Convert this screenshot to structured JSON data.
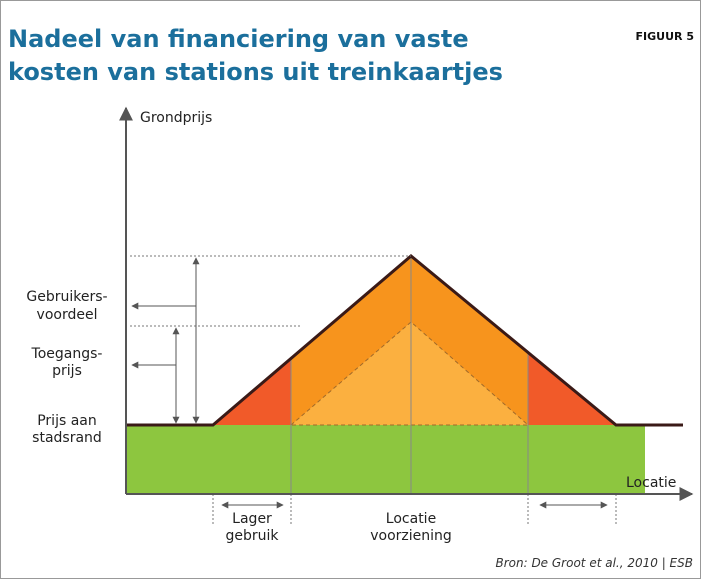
{
  "header": {
    "title_lines": [
      "Nadeel van financiering van  vaste",
      "kosten van stations uit treinkaartjes"
    ],
    "figure_label": "FIGUUR 5"
  },
  "axes": {
    "y_label": "Grondprijs",
    "x_label": "Locatie"
  },
  "left_labels": {
    "user_benefit": [
      "Gebruikers-",
      "voordeel"
    ],
    "access_price": [
      "Toegangs-",
      "prijs"
    ],
    "city_edge_price": [
      "Prijs aan",
      "stadsrand"
    ]
  },
  "bottom_labels": {
    "lower_use": [
      "Lager",
      "gebruik"
    ],
    "facility_location": [
      "Locatie",
      "voorziening"
    ]
  },
  "source": "Bron: De Groot et al., 2010 | ESB"
}
